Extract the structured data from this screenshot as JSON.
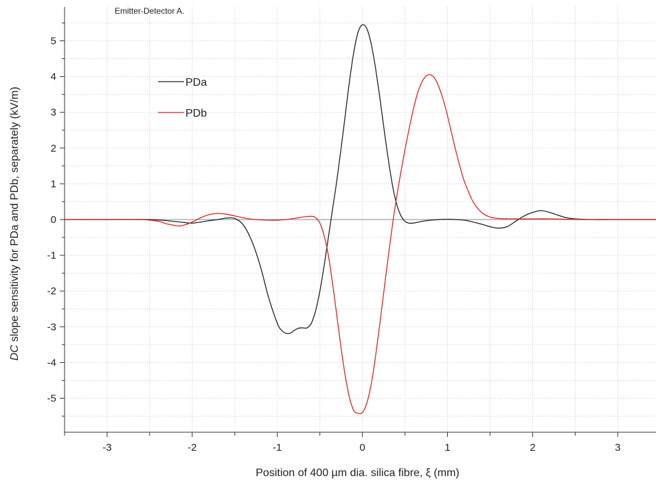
{
  "chart_data": {
    "type": "line",
    "title": "Emitter-Detector A.",
    "xlabel": "Position of 400 µm dia. silica fibre, ξ (mm)",
    "ylabel_italic": "DC",
    "ylabel_rest": " slope sensitivity for PDa and PDb, separately  (kV/m)",
    "xlim": [
      -3.5,
      3.45
    ],
    "ylim": [
      -5.95,
      5.95
    ],
    "x_ticks": [
      -3,
      -2,
      -1,
      0,
      1,
      2,
      3
    ],
    "x_tick_labels": [
      "-3",
      "-2",
      "-1",
      "0",
      "1",
      "2",
      "3"
    ],
    "y_ticks": [
      -5,
      -4,
      -3,
      -2,
      -1,
      0,
      1,
      2,
      3,
      4,
      5
    ],
    "y_tick_labels": [
      "-5",
      "-4",
      "-3",
      "-2",
      "-1",
      "0",
      "1",
      "2",
      "3",
      "4",
      "5"
    ],
    "grid": true,
    "legend_position": "top-left",
    "zero_line": true,
    "series": [
      {
        "name": "PDa",
        "color": "#222222",
        "x": [
          -3.5,
          -3.0,
          -2.7,
          -2.5,
          -2.3,
          -2.1,
          -2.0,
          -1.9,
          -1.8,
          -1.7,
          -1.6,
          -1.5,
          -1.4,
          -1.3,
          -1.2,
          -1.1,
          -1.0,
          -0.95,
          -0.9,
          -0.85,
          -0.8,
          -0.75,
          -0.7,
          -0.65,
          -0.6,
          -0.55,
          -0.5,
          -0.45,
          -0.4,
          -0.35,
          -0.3,
          -0.25,
          -0.2,
          -0.15,
          -0.1,
          -0.05,
          0.0,
          0.05,
          0.1,
          0.15,
          0.2,
          0.25,
          0.3,
          0.35,
          0.4,
          0.45,
          0.5,
          0.55,
          0.6,
          0.7,
          0.8,
          0.9,
          1.0,
          1.1,
          1.2,
          1.3,
          1.4,
          1.5,
          1.6,
          1.7,
          1.8,
          1.9,
          2.0,
          2.1,
          2.2,
          2.3,
          2.4,
          2.5,
          2.7,
          3.0,
          3.45
        ],
        "y": [
          0,
          0,
          0,
          0,
          -0.03,
          -0.08,
          -0.1,
          -0.07,
          -0.03,
          0.0,
          0.04,
          0.03,
          -0.15,
          -0.6,
          -1.3,
          -2.2,
          -2.9,
          -3.1,
          -3.18,
          -3.18,
          -3.1,
          -3.04,
          -3.03,
          -3.03,
          -2.9,
          -2.55,
          -2.0,
          -1.3,
          -0.5,
          0.3,
          1.1,
          2.0,
          2.95,
          3.9,
          4.7,
          5.25,
          5.45,
          5.35,
          4.95,
          4.3,
          3.5,
          2.6,
          1.75,
          1.0,
          0.45,
          0.12,
          -0.05,
          -0.1,
          -0.1,
          -0.05,
          -0.02,
          0.0,
          0.01,
          0.0,
          -0.02,
          -0.07,
          -0.13,
          -0.2,
          -0.24,
          -0.2,
          -0.05,
          0.1,
          0.2,
          0.25,
          0.2,
          0.12,
          0.05,
          0.02,
          0.0,
          0.0,
          0.0
        ]
      },
      {
        "name": "PDb",
        "color": "#dd2222",
        "x": [
          -3.5,
          -3.0,
          -2.6,
          -2.4,
          -2.3,
          -2.2,
          -2.15,
          -2.1,
          -2.0,
          -1.9,
          -1.8,
          -1.7,
          -1.6,
          -1.5,
          -1.4,
          -1.3,
          -1.2,
          -1.1,
          -1.0,
          -0.9,
          -0.8,
          -0.7,
          -0.6,
          -0.55,
          -0.5,
          -0.45,
          -0.4,
          -0.35,
          -0.3,
          -0.25,
          -0.2,
          -0.15,
          -0.1,
          -0.05,
          0.0,
          0.05,
          0.1,
          0.15,
          0.2,
          0.25,
          0.3,
          0.35,
          0.4,
          0.45,
          0.5,
          0.55,
          0.6,
          0.65,
          0.7,
          0.75,
          0.8,
          0.85,
          0.9,
          0.95,
          1.0,
          1.05,
          1.1,
          1.15,
          1.2,
          1.3,
          1.4,
          1.5,
          1.6,
          1.7,
          1.8,
          2.0,
          2.2,
          2.4,
          2.6,
          3.0,
          3.45
        ],
        "y": [
          0,
          0,
          0,
          -0.05,
          -0.12,
          -0.17,
          -0.18,
          -0.16,
          -0.07,
          0.05,
          0.14,
          0.17,
          0.15,
          0.1,
          0.05,
          0.01,
          -0.01,
          -0.02,
          -0.02,
          0.0,
          0.03,
          0.07,
          0.09,
          0.05,
          -0.1,
          -0.45,
          -1.0,
          -1.8,
          -2.7,
          -3.6,
          -4.4,
          -5.0,
          -5.35,
          -5.42,
          -5.4,
          -5.15,
          -4.65,
          -3.9,
          -3.0,
          -2.05,
          -1.1,
          -0.2,
          0.6,
          1.3,
          1.95,
          2.55,
          3.1,
          3.55,
          3.85,
          4.02,
          4.05,
          3.95,
          3.7,
          3.35,
          2.9,
          2.4,
          1.9,
          1.45,
          1.05,
          0.5,
          0.2,
          0.07,
          0.03,
          0.02,
          0.02,
          0.02,
          0.02,
          0.01,
          0.0,
          0.0,
          0.0
        ]
      }
    ]
  }
}
